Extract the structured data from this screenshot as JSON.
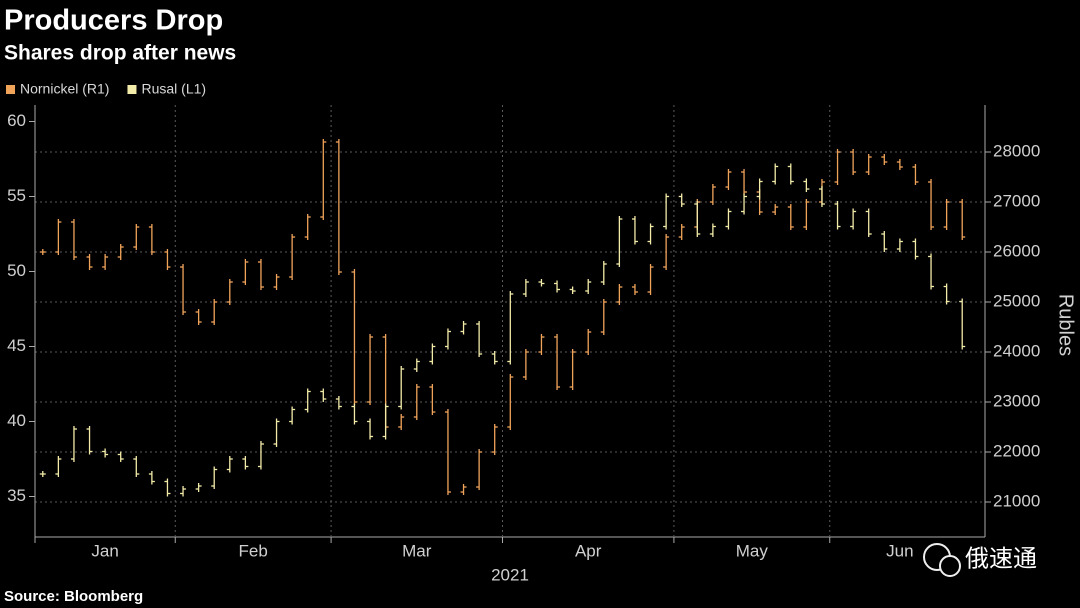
{
  "chart_data": {
    "type": "ohlc",
    "title": "Producers Drop",
    "subtitle": "Shares drop after news",
    "source": "Source: Bloomberg",
    "y2_label": "Rubles",
    "x_label": "2021",
    "watermark": "俄速通",
    "categories": [
      null,
      null,
      null,
      null,
      null,
      null,
      null,
      null,
      null,
      null,
      null,
      null,
      null,
      null,
      null,
      null,
      null,
      null,
      null,
      null,
      null,
      null,
      null,
      null,
      null,
      null,
      null,
      null,
      null,
      null,
      null,
      null,
      null,
      null,
      null,
      null,
      null,
      null,
      null,
      null,
      null,
      null,
      null,
      null,
      null,
      null,
      null,
      null,
      null,
      null,
      null,
      null,
      null,
      null,
      null,
      null,
      null,
      null,
      null,
      null
    ],
    "xticks": [
      {
        "value": 0,
        "label": "Jan"
      },
      {
        "value": 9,
        "label": "Feb"
      },
      {
        "value": 19,
        "label": "Mar"
      },
      {
        "value": 30,
        "label": "Apr"
      },
      {
        "value": 41,
        "label": "May"
      },
      {
        "value": 51,
        "label": "Jun"
      }
    ],
    "ylim": [
      32.3,
      61.1
    ],
    "yticks": [
      35,
      40,
      45,
      50,
      55,
      60
    ],
    "y2lim": [
      20300,
      28940
    ],
    "y2ticks": [
      21000,
      22000,
      23000,
      24000,
      25000,
      26000,
      27000,
      28000
    ],
    "grid": true,
    "series": [
      {
        "name": "Nornickel (R1)",
        "color": "#f0a45a",
        "axis": "y2",
        "values": [
          26000,
          26600,
          25900,
          25700,
          25900,
          26100,
          26500,
          26000,
          25700,
          24800,
          24600,
          25000,
          25400,
          25800,
          25300,
          25500,
          26300,
          26700,
          28200,
          25600,
          23000,
          24300,
          22500,
          22700,
          23300,
          22800,
          21200,
          21300,
          22000,
          22500,
          23500,
          24000,
          24300,
          23300,
          24000,
          24400,
          25000,
          25300,
          25200,
          25700,
          26300,
          26500,
          27000,
          27300,
          27600,
          27200,
          26800,
          26900,
          26500,
          27000,
          27400,
          28000,
          27600,
          27900,
          27800,
          27700,
          27400,
          26500,
          27000,
          26300
        ]
      },
      {
        "name": "Rusal (L1)",
        "color": "#f3eba8",
        "axis": "y",
        "values": [
          36.5,
          37.5,
          39.5,
          38,
          37.8,
          37.5,
          36.5,
          36,
          35.2,
          35.5,
          35.7,
          36.8,
          37.5,
          37,
          38.5,
          40,
          40.8,
          42,
          41.5,
          41,
          40,
          39,
          41,
          43.5,
          44,
          45,
          46,
          46.5,
          44.5,
          44,
          48.5,
          49.3,
          49.2,
          48.8,
          48.7,
          49.3,
          50.5,
          53.5,
          52,
          53,
          55,
          54.5,
          52.5,
          53,
          54,
          55,
          56,
          57,
          56,
          55.5,
          54.5,
          53,
          54,
          52.5,
          51.5,
          52,
          51,
          49,
          48,
          45
        ]
      }
    ]
  }
}
